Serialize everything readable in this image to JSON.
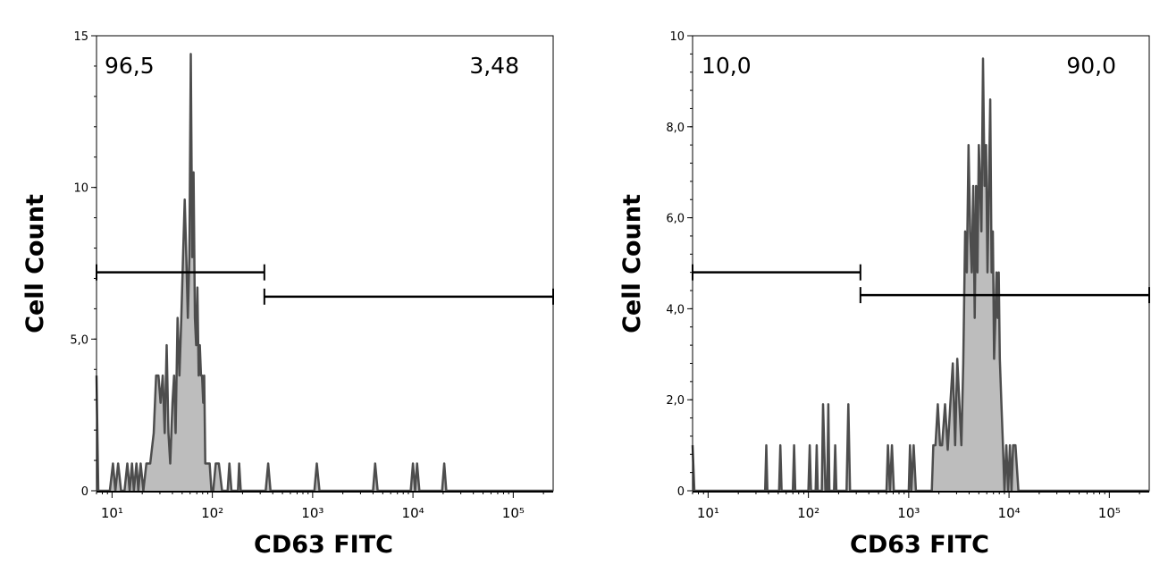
{
  "chart_data": [
    {
      "type": "area",
      "title": "",
      "xlabel": "CD63 FITC",
      "ylabel": "Cell Count",
      "x_scale": "log",
      "xlim": [
        7,
        250000
      ],
      "ylim": [
        0,
        15
      ],
      "xticks": [
        10,
        100,
        1000,
        10000,
        100000
      ],
      "yticks": [
        0,
        5,
        10,
        15
      ],
      "ytick_labels": [
        "0",
        "5,0",
        "10",
        "15"
      ],
      "fill_color": "#bdbdbd",
      "line_color": "#4d4d4d",
      "gates": [
        {
          "label": "96,5",
          "from": 7,
          "to": 330,
          "y": 7.2
        },
        {
          "label": "3,48",
          "from": 330,
          "to": 250000,
          "y": 6.4
        }
      ],
      "points": [
        [
          7,
          3.8
        ],
        [
          7.3,
          0
        ],
        [
          9.5,
          0
        ],
        [
          10.2,
          0.9
        ],
        [
          10.8,
          0
        ],
        [
          11.5,
          0.9
        ],
        [
          12.3,
          0
        ],
        [
          13.3,
          0
        ],
        [
          14.2,
          0.9
        ],
        [
          15,
          0
        ],
        [
          15.8,
          0.9
        ],
        [
          16.5,
          0
        ],
        [
          17.5,
          0.9
        ],
        [
          18.3,
          0
        ],
        [
          19.3,
          0.9
        ],
        [
          20.5,
          0
        ],
        [
          22,
          0.9
        ],
        [
          24,
          0.9
        ],
        [
          26,
          1.9
        ],
        [
          27.5,
          3.8
        ],
        [
          29,
          3.8
        ],
        [
          30.5,
          2.9
        ],
        [
          32,
          3.8
        ],
        [
          33.5,
          1.9
        ],
        [
          35,
          4.8
        ],
        [
          36.5,
          1.9
        ],
        [
          38,
          0.9
        ],
        [
          40,
          2.9
        ],
        [
          41.5,
          3.8
        ],
        [
          43,
          1.9
        ],
        [
          45,
          5.7
        ],
        [
          47,
          3.8
        ],
        [
          49,
          5.7
        ],
        [
          51,
          7.7
        ],
        [
          53,
          9.6
        ],
        [
          55,
          7.7
        ],
        [
          57,
          5.7
        ],
        [
          59,
          7.7
        ],
        [
          61,
          14.4
        ],
        [
          63,
          7.7
        ],
        [
          65,
          10.5
        ],
        [
          67,
          5.7
        ],
        [
          69,
          4.8
        ],
        [
          71,
          6.7
        ],
        [
          73,
          3.8
        ],
        [
          75,
          4.8
        ],
        [
          77,
          3.8
        ],
        [
          79,
          3.8
        ],
        [
          81,
          2.9
        ],
        [
          83,
          3.8
        ],
        [
          85,
          0.9
        ],
        [
          88,
          0.9
        ],
        [
          91,
          0.9
        ],
        [
          94,
          0.9
        ],
        [
          98,
          0
        ],
        [
          102,
          0
        ],
        [
          108,
          0.9
        ],
        [
          116,
          0.9
        ],
        [
          125,
          0
        ],
        [
          142,
          0
        ],
        [
          148,
          0.9
        ],
        [
          155,
          0
        ],
        [
          180,
          0
        ],
        [
          185,
          0.9
        ],
        [
          192,
          0
        ],
        [
          340,
          0
        ],
        [
          360,
          0.9
        ],
        [
          380,
          0
        ],
        [
          1040,
          0
        ],
        [
          1100,
          0.9
        ],
        [
          1170,
          0
        ],
        [
          4000,
          0
        ],
        [
          4200,
          0.9
        ],
        [
          4450,
          0
        ],
        [
          9500,
          0
        ],
        [
          10000,
          0.9
        ],
        [
          10500,
          0
        ],
        [
          11000,
          0.9
        ],
        [
          11600,
          0
        ],
        [
          19500,
          0
        ],
        [
          20500,
          0.9
        ],
        [
          21500,
          0
        ],
        [
          250000,
          0
        ]
      ]
    },
    {
      "type": "area",
      "title": "",
      "xlabel": "CD63 FITC",
      "ylabel": "Cell Count",
      "x_scale": "log",
      "xlim": [
        7,
        250000
      ],
      "ylim": [
        0,
        10
      ],
      "xticks": [
        10,
        100,
        1000,
        10000,
        100000
      ],
      "yticks": [
        0,
        2,
        4,
        6,
        8,
        10
      ],
      "ytick_labels": [
        "0",
        "2,0",
        "4,0",
        "6,0",
        "8,0",
        "10"
      ],
      "fill_color": "#bdbdbd",
      "line_color": "#4d4d4d",
      "gates": [
        {
          "label": "10,0",
          "from": 7,
          "to": 330,
          "y": 4.8
        },
        {
          "label": "90,0",
          "from": 330,
          "to": 250000,
          "y": 4.3
        }
      ],
      "points": [
        [
          7,
          1.0
        ],
        [
          7.3,
          0
        ],
        [
          37,
          0
        ],
        [
          38,
          1.0
        ],
        [
          39,
          0
        ],
        [
          51,
          0
        ],
        [
          52.5,
          1.0
        ],
        [
          54,
          0
        ],
        [
          70,
          0
        ],
        [
          72,
          1.0
        ],
        [
          74,
          0
        ],
        [
          100,
          0
        ],
        [
          103,
          1.0
        ],
        [
          106,
          0
        ],
        [
          118,
          0
        ],
        [
          121,
          1.0
        ],
        [
          124,
          0
        ],
        [
          136,
          0
        ],
        [
          140,
          1.9
        ],
        [
          144,
          0.9
        ],
        [
          148,
          0
        ],
        [
          154,
          0
        ],
        [
          158,
          1.9
        ],
        [
          162,
          0
        ],
        [
          180,
          0
        ],
        [
          185,
          1.0
        ],
        [
          190,
          0
        ],
        [
          240,
          0
        ],
        [
          250,
          1.9
        ],
        [
          260,
          0
        ],
        [
          600,
          0
        ],
        [
          620,
          1.0
        ],
        [
          650,
          0
        ],
        [
          680,
          1.0
        ],
        [
          710,
          0
        ],
        [
          1000,
          0
        ],
        [
          1030,
          1.0
        ],
        [
          1060,
          0
        ],
        [
          1120,
          1.0
        ],
        [
          1180,
          0
        ],
        [
          1700,
          0
        ],
        [
          1760,
          1.0
        ],
        [
          1850,
          1.0
        ],
        [
          1950,
          1.9
        ],
        [
          2050,
          1.0
        ],
        [
          2150,
          1.0
        ],
        [
          2300,
          1.9
        ],
        [
          2450,
          0.9
        ],
        [
          2600,
          1.9
        ],
        [
          2750,
          2.8
        ],
        [
          2900,
          1.0
        ],
        [
          3050,
          2.9
        ],
        [
          3200,
          1.9
        ],
        [
          3350,
          1.0
        ],
        [
          3500,
          2.8
        ],
        [
          3650,
          5.7
        ],
        [
          3800,
          4.8
        ],
        [
          3950,
          7.6
        ],
        [
          4100,
          5.7
        ],
        [
          4250,
          4.8
        ],
        [
          4400,
          6.7
        ],
        [
          4550,
          3.8
        ],
        [
          4700,
          6.7
        ],
        [
          4850,
          4.8
        ],
        [
          5000,
          7.6
        ],
        [
          5150,
          6.7
        ],
        [
          5300,
          5.7
        ],
        [
          5500,
          9.5
        ],
        [
          5700,
          6.7
        ],
        [
          5900,
          7.6
        ],
        [
          6100,
          4.8
        ],
        [
          6300,
          6.7
        ],
        [
          6500,
          8.6
        ],
        [
          6700,
          4.8
        ],
        [
          6900,
          5.7
        ],
        [
          7100,
          2.9
        ],
        [
          7300,
          3.8
        ],
        [
          7500,
          4.8
        ],
        [
          7700,
          3.8
        ],
        [
          7900,
          4.8
        ],
        [
          8100,
          2.9
        ],
        [
          8400,
          1.9
        ],
        [
          8700,
          1.0
        ],
        [
          9000,
          0
        ],
        [
          9400,
          1.0
        ],
        [
          9800,
          0
        ],
        [
          10200,
          1.0
        ],
        [
          10600,
          0
        ],
        [
          11000,
          1.0
        ],
        [
          11600,
          1.0
        ],
        [
          12400,
          0
        ],
        [
          250000,
          0
        ]
      ]
    }
  ]
}
